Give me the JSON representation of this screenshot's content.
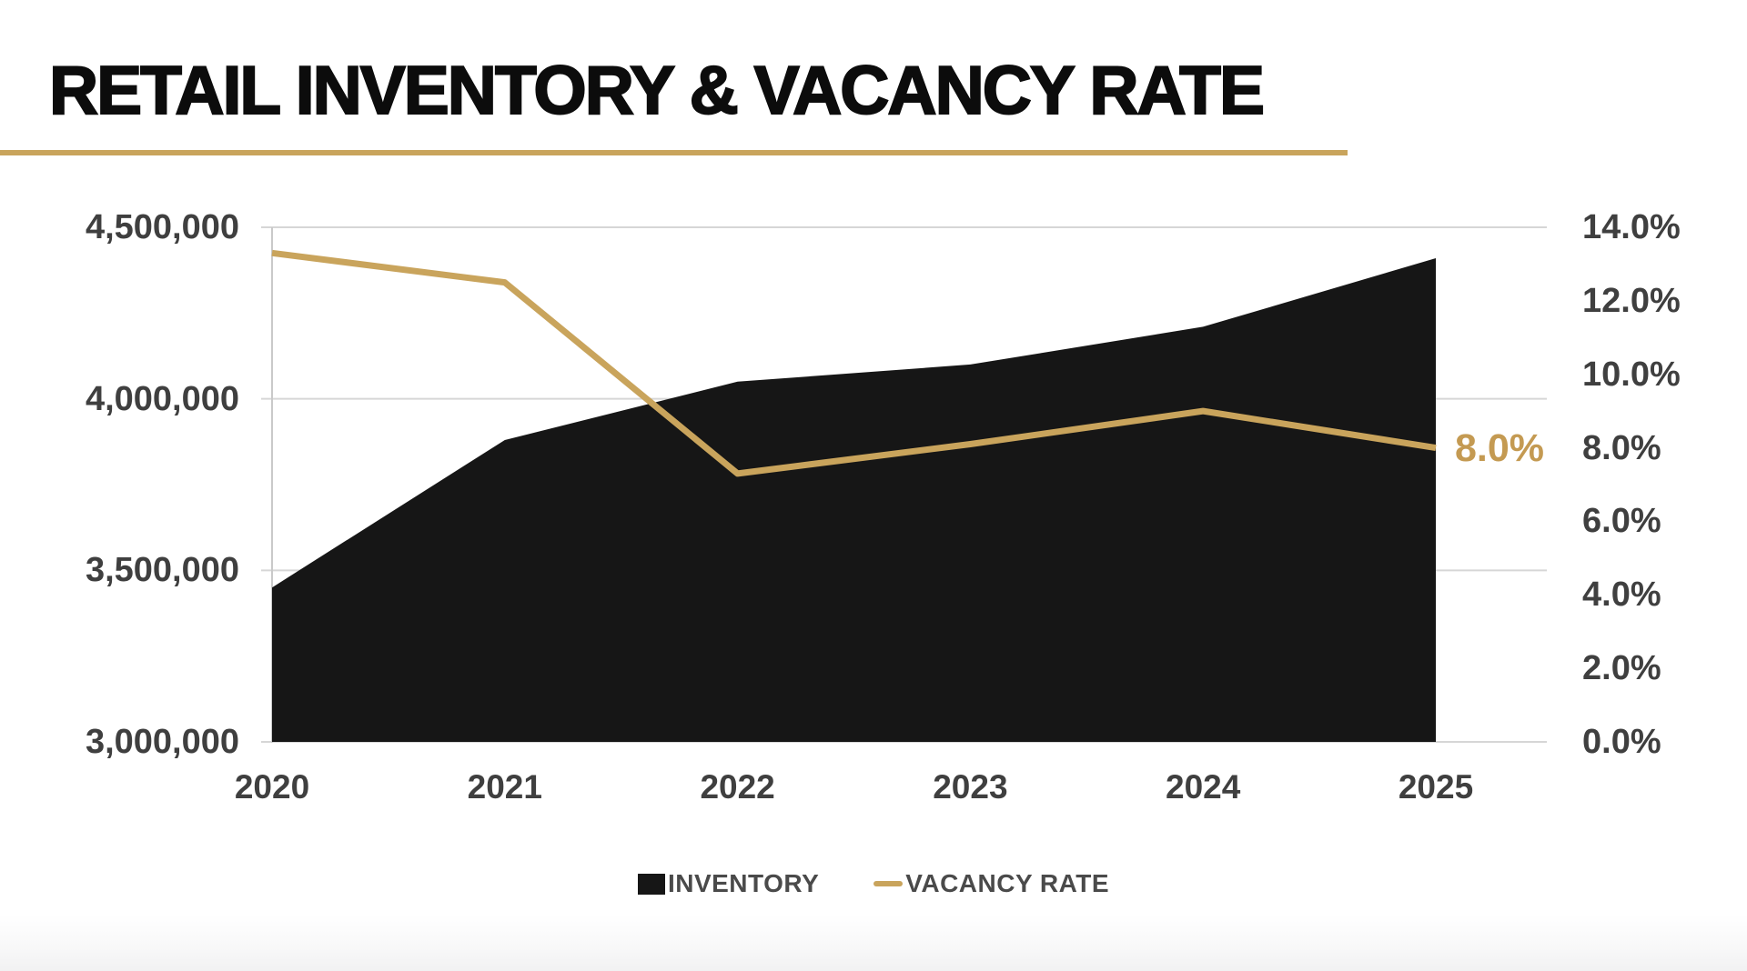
{
  "page": {
    "title": "RETAIL INVENTORY & VACANCY RATE"
  },
  "colors": {
    "accent_gold": "#C9A45C",
    "accent_gold_text": "#C49A52",
    "series_black": "#161616",
    "axis_label_gray": "#3F3F3F",
    "legend_gray": "#4A4A4A",
    "gridline_gray": "#D6D6D6"
  },
  "chart_data": {
    "type": "area",
    "subtype": "combo area + line, dual axis",
    "title": "RETAIL INVENTORY & VACANCY RATE",
    "categories": [
      "2020",
      "2021",
      "2022",
      "2023",
      "2024",
      "2025"
    ],
    "series": [
      {
        "name": "INVENTORY",
        "type": "area",
        "axis": "left",
        "color": "#161616",
        "values": [
          3450000,
          3880000,
          4050000,
          4100000,
          4210000,
          4410000
        ]
      },
      {
        "name": "VACANCY RATE",
        "type": "line",
        "axis": "right",
        "color": "#C9A45C",
        "values": [
          13.3,
          12.5,
          7.3,
          8.1,
          9.0,
          8.0
        ]
      }
    ],
    "left_axis": {
      "min": 3000000,
      "max": 4500000,
      "ticks": [
        "4,500,000",
        "4,000,000",
        "3,500,000",
        "3,000,000"
      ]
    },
    "right_axis": {
      "min": 0,
      "max": 14,
      "ticks": [
        "14.0%",
        "12.0%",
        "10.0%",
        "8.0%",
        "6.0%",
        "4.0%",
        "2.0%",
        "0.0%"
      ]
    },
    "end_label": "8.0%",
    "grid": true,
    "legend_position": "bottom",
    "legend": [
      {
        "label": "INVENTORY",
        "swatch": "square"
      },
      {
        "label": "VACANCY RATE",
        "swatch": "line"
      }
    ]
  }
}
